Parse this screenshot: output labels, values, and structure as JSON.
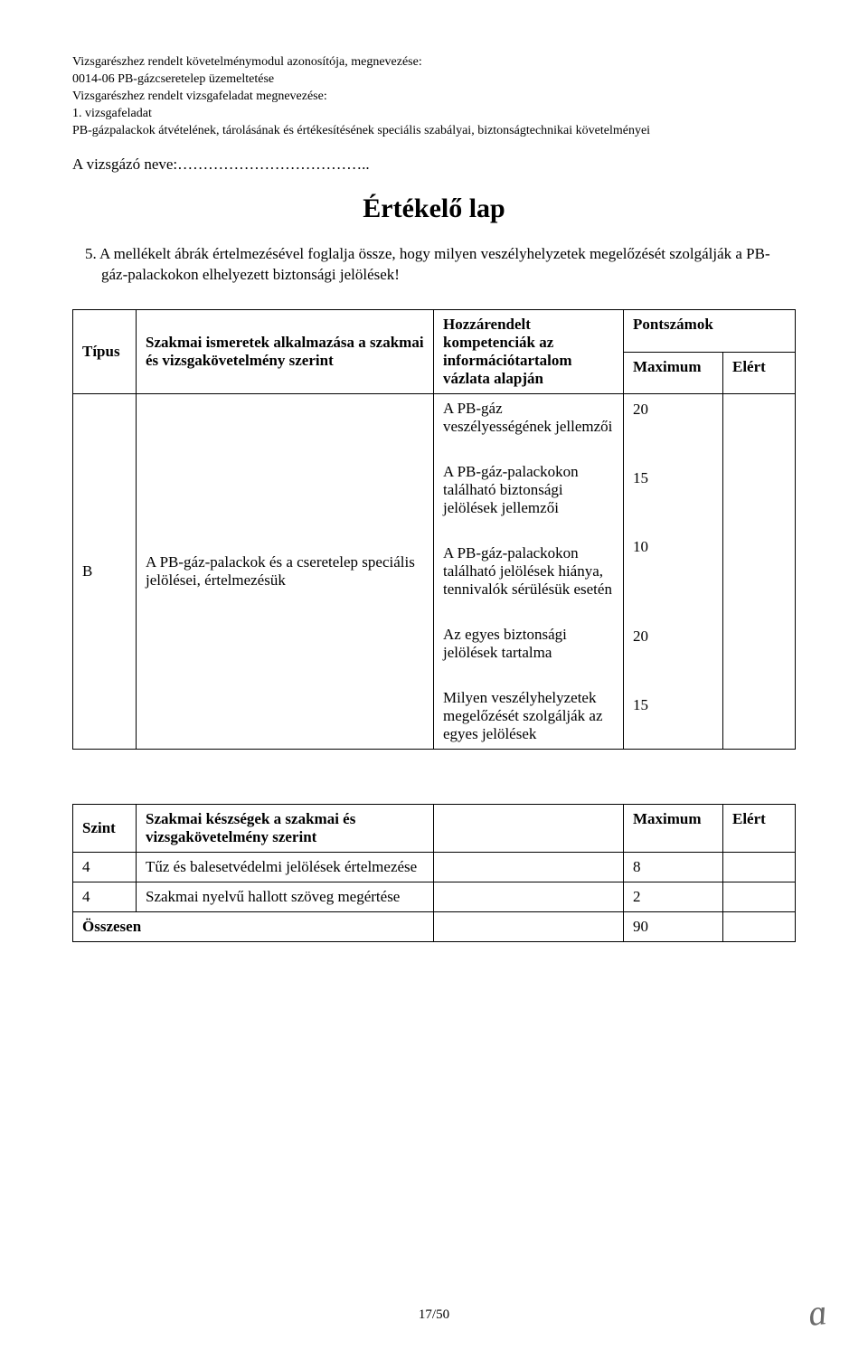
{
  "header": {
    "line1": "Vizsgarészhez rendelt követelménymodul azonosítója, megnevezése:",
    "line2": "0014-06 PB-gázcseretelep üzemeltetése",
    "line3": "Vizsgarészhez rendelt vizsgafeladat megnevezése:",
    "line4": "1. vizsgafeladat",
    "line5": "PB-gázpalackok átvételének, tárolásának és értékesítésének speciális szabályai, biztonságtechnikai követelményei"
  },
  "examinee_label": "A vizsgázó neve:………………………………..",
  "title": "Értékelő lap",
  "task": "5. A mellékelt ábrák értelmezésével foglalja össze, hogy milyen veszélyhelyzetek megelőzését szolgálják a PB-gáz-palackokon elhelyezett biztonsági jelölések!",
  "table1": {
    "head": {
      "tipus": "Típus",
      "szakmai": "Szakmai ismeretek alkalmazása a szakmai és vizsgakövetelmény szerint",
      "hozz": "Hozzárendelt kompetenciák az információtartalom vázlata alapján",
      "pontszamok": "Pontszámok",
      "max": "Maximum",
      "elert": "Elért"
    },
    "row": {
      "tipus": "B",
      "szakmai": "A PB-gáz-palackok és a cseretelep speciális jelölései, értelmezésük",
      "criteria": [
        "A PB-gáz veszélyességének jellemzői",
        "A PB-gáz-palackokon található biztonsági jelölések jellemzői",
        "A PB-gáz-palackokon található jelölések hiánya, tennivalók sérülésük esetén",
        "Az egyes biztonsági jelölések tartalma",
        "Milyen veszélyhelyzetek megelőzését szolgálják az egyes jelölések"
      ],
      "scores": [
        "20",
        "15",
        "10",
        "20",
        "15"
      ]
    }
  },
  "table2": {
    "head": {
      "szint": "Szint",
      "keszseg": "Szakmai készségek a szakmai és vizsgakövetelmény szerint",
      "max": "Maximum",
      "elert": "Elért"
    },
    "rows": [
      {
        "szint": "4",
        "keszseg": "Tűz és balesetvédelmi jelölések értelmezése",
        "max": "8"
      },
      {
        "szint": "4",
        "keszseg": "Szakmai nyelvű hallott szöveg megértése",
        "max": "2"
      }
    ],
    "total_label": "Összesen",
    "total_value": "90"
  },
  "footer": {
    "page": "17/50",
    "glyph": "ɑ"
  }
}
